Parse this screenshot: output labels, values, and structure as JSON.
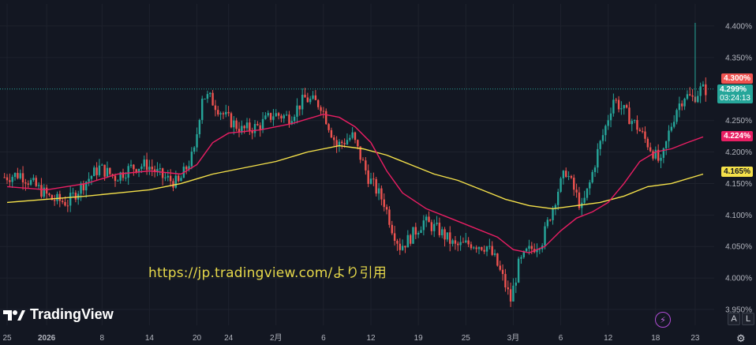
{
  "watermark": "https://jp.tradingview.com/より引用",
  "brand": "TradingView",
  "buttons": {
    "auto": "A",
    "log": "L"
  },
  "colors": {
    "background": "#131722",
    "up": "#26a69a",
    "down": "#ef5350",
    "ma_fast": "#e91e63",
    "ma_slow": "#f5e14a",
    "axis_text": "#b2b5be"
  },
  "price_labels": {
    "last_high": "4.300%",
    "current": "4.299%",
    "countdown": "03:24:13",
    "ma_fast": "4.224%",
    "ma_slow": "4.165%"
  },
  "chart_data": {
    "type": "candlestick",
    "y_ticks": [
      "4.400%",
      "4.350%",
      "4.250%",
      "4.200%",
      "4.150%",
      "4.100%",
      "4.050%",
      "4.000%",
      "3.950%"
    ],
    "y_tick_values": [
      4.4,
      4.35,
      4.25,
      4.2,
      4.15,
      4.1,
      4.05,
      4.0,
      3.95
    ],
    "ylim": [
      3.925,
      4.435
    ],
    "x_ticks": [
      "25",
      "2026",
      "8",
      "14",
      "20",
      "24",
      "2月",
      "6",
      "12",
      "19",
      "25",
      "3月",
      "6",
      "12",
      "18",
      "23"
    ],
    "x_tick_pos": [
      0,
      5,
      12,
      18,
      24,
      28,
      34,
      40,
      46,
      52,
      58,
      64,
      70,
      76,
      82,
      87
    ],
    "n_candles": 89,
    "close_path": [
      [
        0,
        4.16
      ],
      [
        2,
        4.165
      ],
      [
        4,
        4.145
      ],
      [
        6,
        4.125
      ],
      [
        8,
        4.12
      ],
      [
        10,
        4.15
      ],
      [
        12,
        4.175
      ],
      [
        14,
        4.16
      ],
      [
        16,
        4.175
      ],
      [
        18,
        4.18
      ],
      [
        20,
        4.16
      ],
      [
        22,
        4.15
      ],
      [
        24,
        4.2
      ],
      [
        25,
        4.29
      ],
      [
        26,
        4.285
      ],
      [
        28,
        4.255
      ],
      [
        30,
        4.235
      ],
      [
        32,
        4.24
      ],
      [
        34,
        4.26
      ],
      [
        36,
        4.255
      ],
      [
        38,
        4.285
      ],
      [
        40,
        4.275
      ],
      [
        42,
        4.21
      ],
      [
        44,
        4.225
      ],
      [
        46,
        4.16
      ],
      [
        48,
        4.12
      ],
      [
        49,
        4.08
      ],
      [
        50,
        4.05
      ],
      [
        51,
        4.06
      ],
      [
        53,
        4.09
      ],
      [
        55,
        4.075
      ],
      [
        57,
        4.05
      ],
      [
        59,
        4.055
      ],
      [
        61,
        4.05
      ],
      [
        62,
        4.03
      ],
      [
        63,
        4.0
      ],
      [
        64,
        3.965
      ],
      [
        65,
        4.02
      ],
      [
        66,
        4.04
      ],
      [
        68,
        4.06
      ],
      [
        70,
        4.14
      ],
      [
        71,
        4.17
      ],
      [
        72,
        4.14
      ],
      [
        73,
        4.11
      ],
      [
        74,
        4.15
      ],
      [
        75,
        4.2
      ],
      [
        76,
        4.24
      ],
      [
        77,
        4.285
      ],
      [
        78,
        4.27
      ],
      [
        80,
        4.24
      ],
      [
        82,
        4.2
      ],
      [
        83,
        4.18
      ],
      [
        84,
        4.23
      ],
      [
        85,
        4.27
      ],
      [
        86,
        4.29
      ],
      [
        87,
        4.285
      ],
      [
        88,
        4.299
      ]
    ],
    "ma_fast": [
      [
        0,
        4.145
      ],
      [
        5,
        4.14
      ],
      [
        10,
        4.15
      ],
      [
        14,
        4.165
      ],
      [
        18,
        4.17
      ],
      [
        22,
        4.165
      ],
      [
        24,
        4.18
      ],
      [
        26,
        4.215
      ],
      [
        28,
        4.23
      ],
      [
        32,
        4.235
      ],
      [
        36,
        4.245
      ],
      [
        40,
        4.26
      ],
      [
        42,
        4.255
      ],
      [
        44,
        4.24
      ],
      [
        46,
        4.215
      ],
      [
        48,
        4.17
      ],
      [
        50,
        4.135
      ],
      [
        53,
        4.11
      ],
      [
        56,
        4.095
      ],
      [
        59,
        4.08
      ],
      [
        62,
        4.065
      ],
      [
        64,
        4.045
      ],
      [
        66,
        4.04
      ],
      [
        68,
        4.05
      ],
      [
        70,
        4.075
      ],
      [
        72,
        4.095
      ],
      [
        74,
        4.105
      ],
      [
        76,
        4.12
      ],
      [
        78,
        4.15
      ],
      [
        80,
        4.185
      ],
      [
        82,
        4.2
      ],
      [
        84,
        4.205
      ],
      [
        86,
        4.215
      ],
      [
        88,
        4.224
      ]
    ],
    "ma_slow": [
      [
        0,
        4.12
      ],
      [
        5,
        4.125
      ],
      [
        10,
        4.13
      ],
      [
        14,
        4.135
      ],
      [
        18,
        4.14
      ],
      [
        22,
        4.15
      ],
      [
        26,
        4.165
      ],
      [
        30,
        4.175
      ],
      [
        34,
        4.185
      ],
      [
        38,
        4.2
      ],
      [
        42,
        4.21
      ],
      [
        45,
        4.205
      ],
      [
        48,
        4.195
      ],
      [
        51,
        4.18
      ],
      [
        54,
        4.165
      ],
      [
        57,
        4.155
      ],
      [
        60,
        4.14
      ],
      [
        63,
        4.125
      ],
      [
        66,
        4.115
      ],
      [
        69,
        4.11
      ],
      [
        72,
        4.115
      ],
      [
        75,
        4.12
      ],
      [
        78,
        4.13
      ],
      [
        81,
        4.145
      ],
      [
        84,
        4.15
      ],
      [
        88,
        4.165
      ]
    ],
    "spike": {
      "index": 87,
      "high": 4.405
    },
    "dotted_level": 4.3
  }
}
